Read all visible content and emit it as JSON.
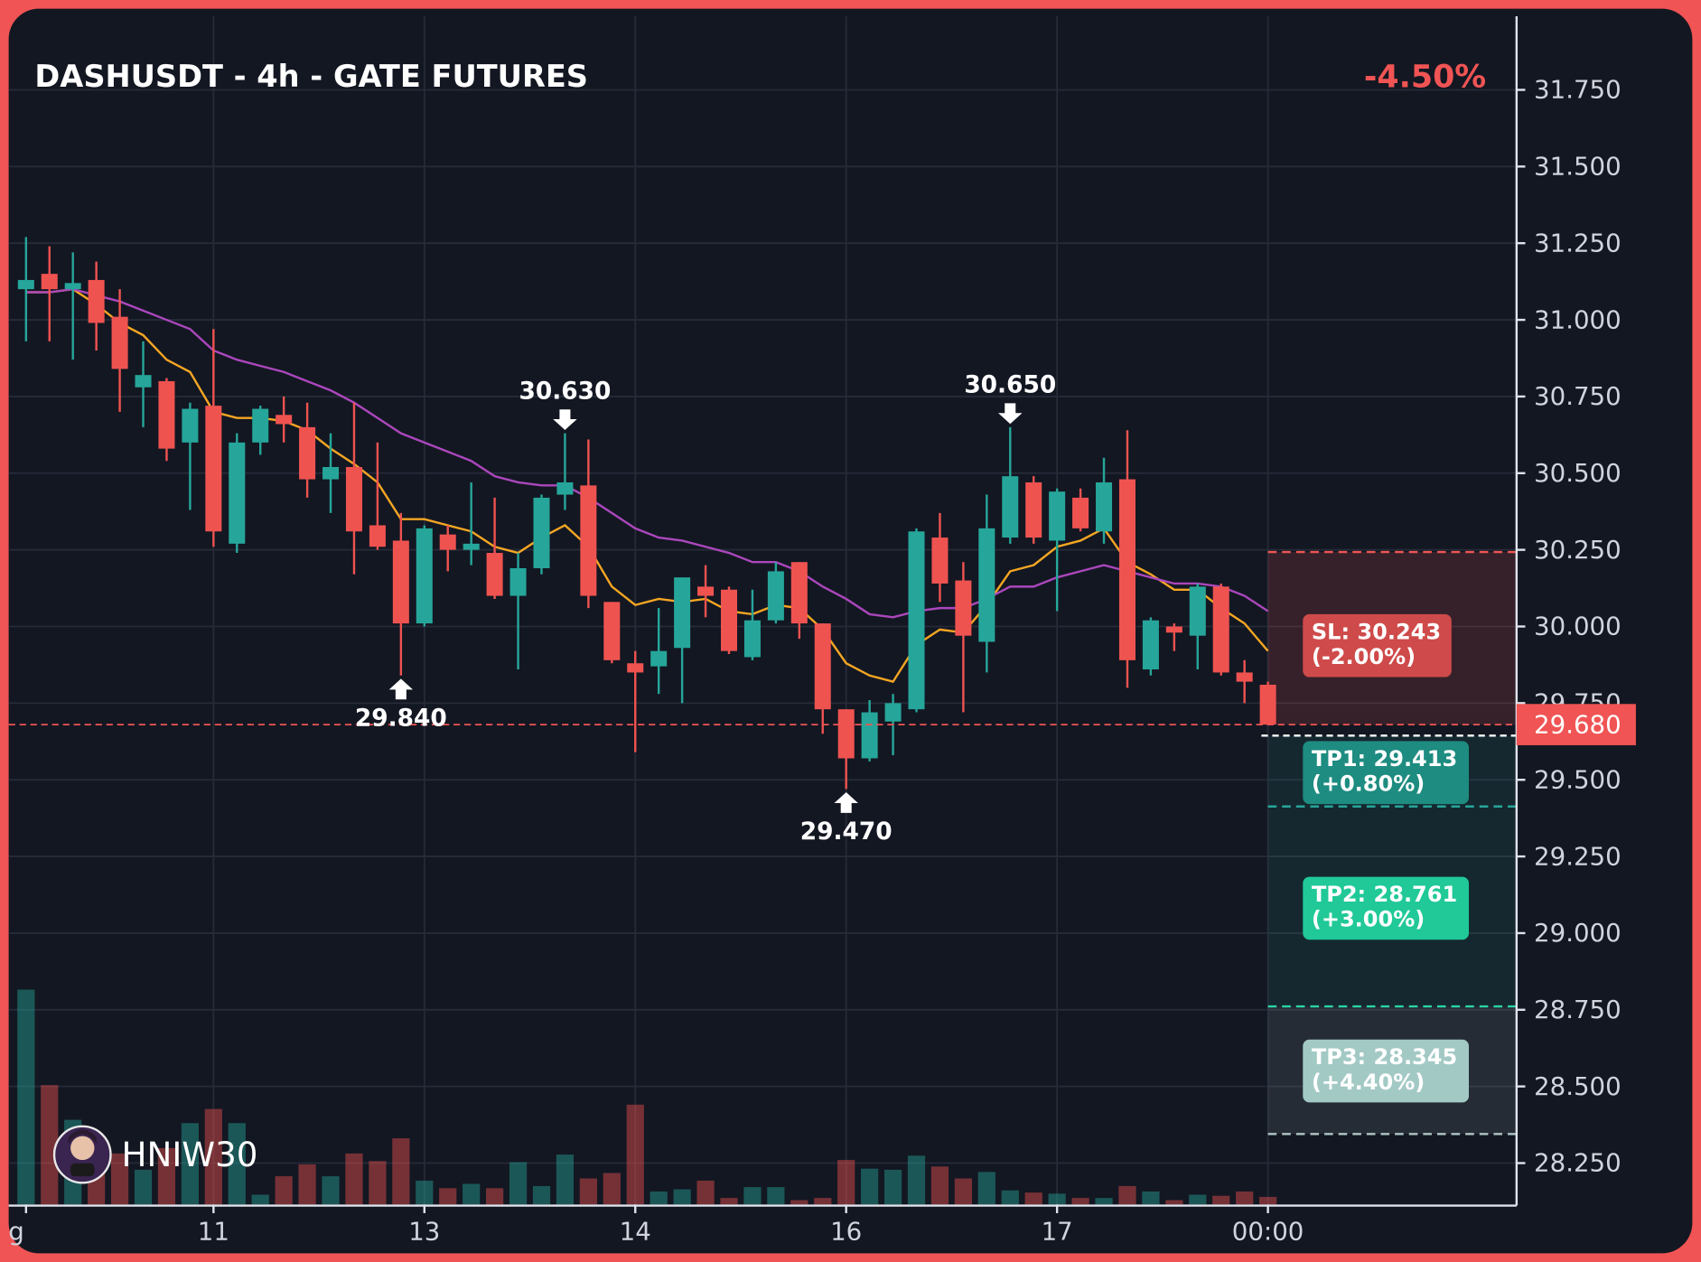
{
  "chart_data": {
    "type": "candlestick",
    "title": "DASHUSDT - 4h - GATE FUTURES",
    "change": {
      "value": -4.5,
      "label": "-4.50%"
    },
    "watermark": "HNIW30",
    "up_color": "#26a69a",
    "down_color": "#ef5350",
    "grid": true,
    "categories": [
      "g",
      null,
      null,
      null,
      null,
      null,
      null,
      null,
      "11",
      null,
      null,
      null,
      null,
      null,
      null,
      null,
      null,
      "13",
      null,
      null,
      null,
      null,
      null,
      null,
      null,
      null,
      "14",
      null,
      null,
      null,
      null,
      null,
      null,
      null,
      null,
      "16",
      null,
      null,
      null,
      null,
      null,
      null,
      null,
      null,
      "17",
      null,
      null,
      null,
      null,
      null,
      null,
      null,
      null,
      "00:00"
    ],
    "open": [
      31.1,
      31.15,
      31.1,
      31.13,
      31.01,
      30.78,
      30.8,
      30.6,
      30.72,
      30.27,
      30.6,
      30.69,
      30.65,
      30.48,
      30.52,
      30.33,
      30.28,
      30.01,
      30.3,
      30.25,
      30.24,
      30.1,
      30.19,
      30.43,
      30.46,
      30.08,
      29.88,
      29.87,
      29.93,
      30.13,
      30.12,
      29.9,
      30.02,
      30.21,
      30.01,
      29.73,
      29.57,
      29.69,
      29.73,
      30.29,
      30.15,
      29.95,
      30.29,
      30.47,
      30.28,
      30.42,
      30.31,
      30.48,
      29.86,
      30.0,
      29.97,
      30.13,
      29.85,
      29.81
    ],
    "high": [
      31.27,
      31.24,
      31.22,
      31.19,
      31.1,
      30.93,
      30.81,
      30.73,
      30.97,
      30.63,
      30.72,
      30.75,
      30.73,
      30.63,
      30.73,
      30.6,
      30.37,
      30.33,
      30.33,
      30.47,
      30.42,
      30.24,
      30.43,
      30.63,
      30.61,
      30.08,
      29.92,
      30.06,
      30.16,
      30.2,
      30.13,
      30.12,
      30.21,
      30.21,
      30.01,
      29.73,
      29.76,
      29.78,
      30.32,
      30.37,
      30.21,
      30.43,
      30.65,
      30.49,
      30.45,
      30.45,
      30.55,
      30.64,
      30.03,
      30.01,
      30.14,
      30.14,
      29.89,
      29.82
    ],
    "low": [
      30.93,
      30.93,
      30.87,
      30.9,
      30.7,
      30.65,
      30.54,
      30.38,
      30.26,
      30.24,
      30.56,
      30.6,
      30.42,
      30.37,
      30.17,
      30.25,
      29.84,
      30.0,
      30.18,
      30.2,
      30.09,
      29.86,
      30.17,
      30.38,
      30.06,
      29.88,
      29.59,
      29.78,
      29.75,
      30.03,
      29.91,
      29.89,
      30.01,
      29.96,
      29.65,
      29.47,
      29.56,
      29.58,
      29.72,
      30.08,
      29.72,
      29.85,
      30.27,
      30.27,
      30.05,
      30.31,
      30.27,
      29.8,
      29.84,
      29.92,
      29.86,
      29.84,
      29.75,
      29.68
    ],
    "close": [
      31.13,
      31.1,
      31.12,
      30.99,
      30.84,
      30.82,
      30.58,
      30.71,
      30.31,
      30.6,
      30.71,
      30.66,
      30.48,
      30.52,
      30.31,
      30.26,
      30.01,
      30.32,
      30.25,
      30.27,
      30.1,
      30.19,
      30.42,
      30.47,
      30.1,
      29.89,
      29.85,
      29.92,
      30.16,
      30.1,
      29.92,
      30.02,
      30.18,
      30.01,
      29.73,
      29.57,
      29.72,
      29.75,
      30.31,
      30.14,
      29.97,
      30.32,
      30.49,
      30.29,
      30.44,
      30.32,
      30.47,
      29.89,
      30.02,
      29.98,
      30.13,
      29.85,
      29.82,
      29.68
    ],
    "volume": [
      198,
      110,
      78,
      62,
      47,
      32,
      52,
      75,
      88,
      75,
      9,
      26,
      37,
      26,
      47,
      40,
      61,
      22,
      15,
      19,
      15,
      39,
      17,
      46,
      24,
      29,
      92,
      12,
      14,
      22,
      6,
      16,
      16,
      4,
      6,
      41,
      33,
      32,
      45,
      35,
      24,
      30,
      13,
      11,
      10,
      6,
      6,
      17,
      12,
      4,
      9,
      8,
      12,
      7
    ],
    "ma": [
      {
        "color": "#f5a623",
        "values": [
          31.09,
          31.09,
          31.1,
          31.05,
          30.99,
          30.95,
          30.87,
          30.83,
          30.7,
          30.68,
          30.68,
          30.67,
          30.64,
          30.58,
          30.53,
          30.47,
          30.35,
          30.35,
          30.33,
          30.31,
          30.26,
          30.24,
          30.29,
          30.33,
          30.26,
          30.13,
          30.07,
          30.09,
          30.08,
          30.09,
          30.05,
          30.04,
          30.07,
          30.06,
          29.99,
          29.88,
          29.84,
          29.82,
          29.94,
          29.99,
          29.98,
          30.07,
          30.18,
          30.2,
          30.26,
          30.28,
          30.32,
          30.21,
          30.17,
          30.12,
          30.12,
          30.06,
          30.01,
          29.92
        ]
      },
      {
        "color": "#ab47bc",
        "values": [
          31.09,
          31.09,
          31.1,
          31.08,
          31.06,
          31.03,
          31.0,
          30.97,
          30.9,
          30.87,
          30.85,
          30.83,
          30.8,
          30.77,
          30.73,
          30.68,
          30.63,
          30.6,
          30.57,
          30.54,
          30.49,
          30.47,
          30.46,
          30.46,
          30.42,
          30.37,
          30.32,
          30.29,
          30.28,
          30.26,
          30.24,
          30.21,
          30.21,
          30.18,
          30.13,
          30.09,
          30.04,
          30.03,
          30.05,
          30.06,
          30.06,
          30.09,
          30.13,
          30.13,
          30.16,
          30.18,
          30.2,
          30.18,
          30.16,
          30.14,
          30.14,
          30.13,
          30.1,
          30.05
        ]
      }
    ],
    "ylim": [
      28.115,
      31.99
    ],
    "yticks": [
      {
        "value": 31.75,
        "label": "31.750"
      },
      {
        "value": 31.5,
        "label": "31.500"
      },
      {
        "value": 31.25,
        "label": "31.250"
      },
      {
        "value": 31.0,
        "label": "31.000"
      },
      {
        "value": 30.75,
        "label": "30.750"
      },
      {
        "value": 30.5,
        "label": "30.500"
      },
      {
        "value": 30.25,
        "label": "30.250"
      },
      {
        "value": 30.0,
        "label": "30.000"
      },
      {
        "value": 29.75,
        "label": "29.750"
      },
      {
        "value": 29.5,
        "label": "29.500"
      },
      {
        "value": 29.25,
        "label": "29.250"
      },
      {
        "value": 29.0,
        "label": "29.000"
      },
      {
        "value": 28.75,
        "label": "28.750"
      },
      {
        "value": 28.5,
        "label": "28.500"
      },
      {
        "value": 28.25,
        "label": "28.250"
      }
    ],
    "current_price": {
      "value": 29.68,
      "label": "29.680",
      "color": "#f05454"
    },
    "entry": 29.644,
    "levels": [
      {
        "label": "SL: 30.243",
        "value": 30.243,
        "change_label": "(-2.00%)",
        "change": -2.0,
        "color": "#f05454",
        "box_color": "#cf4a4a"
      },
      {
        "label": "TP1: 29.413",
        "value": 29.413,
        "change_label": "(+0.80%)",
        "change": 0.8,
        "color": "#26a69a",
        "box_color": "#1e8c80"
      },
      {
        "label": "TP2: 28.761",
        "value": 28.761,
        "change_label": "(+3.00%)",
        "change": 3.0,
        "color": "#2bd4a4",
        "box_color": "#20c997"
      },
      {
        "label": "TP3: 28.345",
        "value": 28.345,
        "change_label": "(+4.40%)",
        "change": 4.4,
        "color": "#b0c4c4",
        "box_color": "#a3c9c5"
      }
    ],
    "annotations": [
      {
        "index": 16,
        "kind": "low",
        "value": 29.84,
        "label": "29.840"
      },
      {
        "index": 23,
        "kind": "high",
        "value": 30.63,
        "label": "30.630"
      },
      {
        "index": 35,
        "kind": "low",
        "value": 29.47,
        "label": "29.470"
      },
      {
        "index": 42,
        "kind": "high",
        "value": 30.65,
        "label": "30.650"
      }
    ]
  }
}
